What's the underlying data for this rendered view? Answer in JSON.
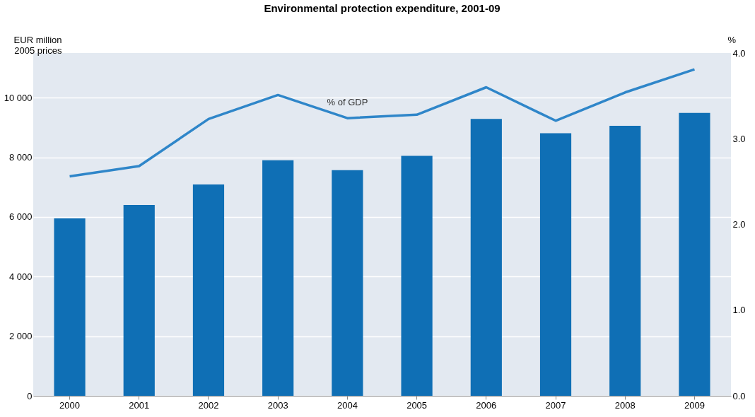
{
  "chart_data": {
    "type": "bar",
    "title": "Environmental protection expenditure, 2001-09",
    "ylabel": "EUR million\n2005 prices",
    "y2label": "%",
    "categories": [
      "2000",
      "2001",
      "2002",
      "2003",
      "2004",
      "2005",
      "2006",
      "2007",
      "2008",
      "2009"
    ],
    "series": [
      {
        "color": "#0f6fb5",
        "values": [
          5950,
          6400,
          7090,
          7900,
          7570,
          8050,
          9290,
          8810,
          9060,
          9490
        ]
      },
      {
        "type": "line",
        "name": "% of GDP",
        "axis": "y2",
        "color": "#2f86c9",
        "values": [
          2.56,
          2.68,
          3.23,
          3.51,
          3.24,
          3.28,
          3.6,
          3.21,
          3.54,
          3.81
        ]
      }
    ],
    "ylim": [
      0,
      11500
    ],
    "yticks": [
      {
        "value": 0,
        "label": "0"
      },
      {
        "value": 2000,
        "label": "2 000"
      },
      {
        "value": 4000,
        "label": "4 000"
      },
      {
        "value": 6000,
        "label": "6 000"
      },
      {
        "value": 8000,
        "label": "8 000"
      },
      {
        "value": 10000,
        "label": "10 000"
      }
    ],
    "y2lim": [
      0,
      4
    ],
    "y2ticks": [
      {
        "value": 0,
        "label": "0.0"
      },
      {
        "value": 1,
        "label": "1.0"
      },
      {
        "value": 2,
        "label": "2.0"
      },
      {
        "value": 3,
        "label": "3.0"
      },
      {
        "value": 4,
        "label": "4.0"
      }
    ],
    "grid": "y",
    "marker": "none",
    "line_style": "solid"
  }
}
